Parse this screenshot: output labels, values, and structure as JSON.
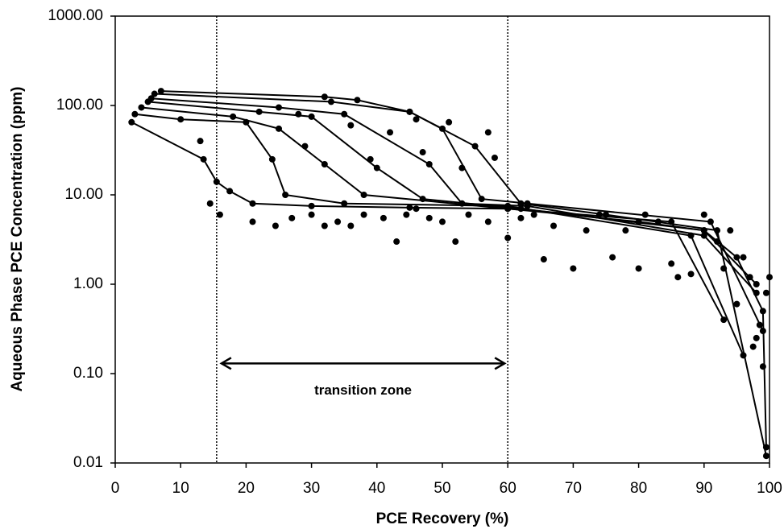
{
  "chart_data": {
    "type": "scatter",
    "yscale": "log",
    "color": "#000000",
    "xlabel": "PCE Recovery (%)",
    "ylabel": "Aqueous Phase PCE Concentration (ppm)",
    "xlim": [
      0,
      100
    ],
    "xticks": [
      0,
      10,
      20,
      30,
      40,
      50,
      60,
      70,
      80,
      90,
      100
    ],
    "ylim": [
      0.01,
      1000
    ],
    "yticks": [
      {
        "value": 0.01,
        "label": "0.01"
      },
      {
        "value": 0.1,
        "label": "0.10"
      },
      {
        "value": 1,
        "label": "1.00"
      },
      {
        "value": 10,
        "label": "10.00"
      },
      {
        "value": 100,
        "label": "100.00"
      },
      {
        "value": 1000,
        "label": "1000.00"
      }
    ],
    "transition_zone": {
      "label": "transition zone",
      "x": [
        15.5,
        60
      ],
      "y": 0.13
    },
    "series": [
      {
        "line": true,
        "x": [
          2.5,
          13.5,
          15.5,
          17.5,
          21,
          30,
          45,
          60,
          80,
          90,
          95,
          99,
          99.5
        ],
        "values": [
          65,
          25,
          14,
          11,
          8,
          7.5,
          7.2,
          7,
          5,
          4,
          2,
          0.5,
          0.015
        ]
      },
      {
        "line": true,
        "x": [
          3,
          10,
          20,
          24,
          26,
          35,
          60,
          88,
          96
        ],
        "values": [
          80,
          70,
          65,
          25,
          10,
          8,
          7.5,
          3.5,
          0.16
        ]
      },
      {
        "line": true,
        "x": [
          4,
          18,
          25,
          32,
          38,
          60,
          85,
          93
        ],
        "values": [
          95,
          75,
          55,
          22,
          10,
          7,
          5,
          0.4
        ]
      },
      {
        "line": true,
        "x": [
          5,
          22,
          30,
          40,
          47,
          62,
          90,
          98
        ],
        "values": [
          110,
          85,
          75,
          20,
          9,
          7,
          4,
          1
        ]
      },
      {
        "line": true,
        "x": [
          5.5,
          25,
          35,
          48,
          53,
          63,
          90,
          98
        ],
        "values": [
          120,
          95,
          80,
          22,
          8,
          7.5,
          3.5,
          0.8
        ]
      },
      {
        "line": true,
        "x": [
          6,
          33,
          45,
          50,
          56,
          63,
          91,
          99
        ],
        "values": [
          135,
          110,
          85,
          55,
          9,
          8,
          5,
          0.3
        ]
      },
      {
        "line": true,
        "x": [
          7,
          32,
          37,
          45,
          55,
          62,
          75,
          92,
          99.5
        ],
        "values": [
          145,
          125,
          115,
          85,
          35,
          8,
          6,
          4,
          0.012
        ]
      },
      {
        "line": false,
        "x": [
          13,
          14.5,
          16,
          21,
          24.5,
          27,
          30,
          32,
          34,
          36,
          38,
          41,
          43,
          44.5,
          46,
          48,
          50,
          52,
          54,
          57,
          58,
          60,
          62,
          64,
          65.5,
          67,
          70,
          72,
          74,
          76,
          78,
          80,
          81,
          83,
          85,
          86,
          88,
          90,
          92,
          93,
          94,
          95,
          96,
          97,
          97.5,
          98,
          98.5,
          99,
          99.5,
          100,
          28,
          36,
          42,
          46,
          51,
          57,
          29,
          39,
          47,
          53
        ],
        "values": [
          40,
          8,
          6,
          5,
          4.5,
          5.5,
          6,
          4.5,
          5,
          4.5,
          6,
          5.5,
          3,
          6,
          7,
          5.5,
          5,
          3,
          6,
          5,
          26,
          3.3,
          5.5,
          6,
          1.9,
          4.5,
          1.5,
          4,
          6,
          2,
          4,
          1.5,
          6,
          5,
          1.7,
          1.2,
          1.3,
          6,
          3,
          1.5,
          4,
          0.6,
          2,
          1.2,
          0.2,
          0.25,
          0.35,
          0.12,
          0.8,
          1.2,
          80,
          60,
          50,
          70,
          65,
          50,
          35,
          25,
          30,
          20
        ]
      }
    ]
  }
}
